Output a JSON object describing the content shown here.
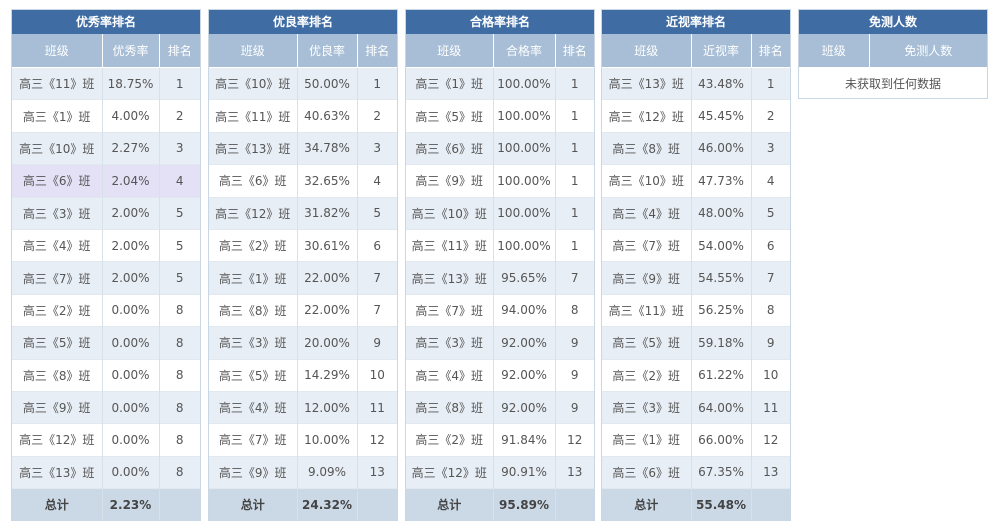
{
  "headers": {
    "class": "班级",
    "rank": "排名"
  },
  "tables": [
    {
      "title": "优秀率排名",
      "metric": "优秀率",
      "rows": [
        {
          "cls": "高三《11》班",
          "val": "18.75%",
          "rank": "1"
        },
        {
          "cls": "高三《1》班",
          "val": "4.00%",
          "rank": "2"
        },
        {
          "cls": "高三《10》班",
          "val": "2.27%",
          "rank": "3"
        },
        {
          "cls": "高三《6》班",
          "val": "2.04%",
          "rank": "4"
        },
        {
          "cls": "高三《3》班",
          "val": "2.00%",
          "rank": "5"
        },
        {
          "cls": "高三《4》班",
          "val": "2.00%",
          "rank": "5"
        },
        {
          "cls": "高三《7》班",
          "val": "2.00%",
          "rank": "5"
        },
        {
          "cls": "高三《2》班",
          "val": "0.00%",
          "rank": "8"
        },
        {
          "cls": "高三《5》班",
          "val": "0.00%",
          "rank": "8"
        },
        {
          "cls": "高三《8》班",
          "val": "0.00%",
          "rank": "8"
        },
        {
          "cls": "高三《9》班",
          "val": "0.00%",
          "rank": "8"
        },
        {
          "cls": "高三《12》班",
          "val": "0.00%",
          "rank": "8"
        },
        {
          "cls": "高三《13》班",
          "val": "0.00%",
          "rank": "8"
        }
      ],
      "total_label": "总计",
      "total_value": "2.23%"
    },
    {
      "title": "优良率排名",
      "metric": "优良率",
      "rows": [
        {
          "cls": "高三《10》班",
          "val": "50.00%",
          "rank": "1"
        },
        {
          "cls": "高三《11》班",
          "val": "40.63%",
          "rank": "2"
        },
        {
          "cls": "高三《13》班",
          "val": "34.78%",
          "rank": "3"
        },
        {
          "cls": "高三《6》班",
          "val": "32.65%",
          "rank": "4"
        },
        {
          "cls": "高三《12》班",
          "val": "31.82%",
          "rank": "5"
        },
        {
          "cls": "高三《2》班",
          "val": "30.61%",
          "rank": "6"
        },
        {
          "cls": "高三《1》班",
          "val": "22.00%",
          "rank": "7"
        },
        {
          "cls": "高三《8》班",
          "val": "22.00%",
          "rank": "7"
        },
        {
          "cls": "高三《3》班",
          "val": "20.00%",
          "rank": "9"
        },
        {
          "cls": "高三《5》班",
          "val": "14.29%",
          "rank": "10"
        },
        {
          "cls": "高三《4》班",
          "val": "12.00%",
          "rank": "11"
        },
        {
          "cls": "高三《7》班",
          "val": "10.00%",
          "rank": "12"
        },
        {
          "cls": "高三《9》班",
          "val": "9.09%",
          "rank": "13"
        }
      ],
      "total_label": "总计",
      "total_value": "24.32%"
    },
    {
      "title": "合格率排名",
      "metric": "合格率",
      "rows": [
        {
          "cls": "高三《1》班",
          "val": "100.00%",
          "rank": "1"
        },
        {
          "cls": "高三《5》班",
          "val": "100.00%",
          "rank": "1"
        },
        {
          "cls": "高三《6》班",
          "val": "100.00%",
          "rank": "1"
        },
        {
          "cls": "高三《9》班",
          "val": "100.00%",
          "rank": "1"
        },
        {
          "cls": "高三《10》班",
          "val": "100.00%",
          "rank": "1"
        },
        {
          "cls": "高三《11》班",
          "val": "100.00%",
          "rank": "1"
        },
        {
          "cls": "高三《13》班",
          "val": "95.65%",
          "rank": "7"
        },
        {
          "cls": "高三《7》班",
          "val": "94.00%",
          "rank": "8"
        },
        {
          "cls": "高三《3》班",
          "val": "92.00%",
          "rank": "9"
        },
        {
          "cls": "高三《4》班",
          "val": "92.00%",
          "rank": "9"
        },
        {
          "cls": "高三《8》班",
          "val": "92.00%",
          "rank": "9"
        },
        {
          "cls": "高三《2》班",
          "val": "91.84%",
          "rank": "12"
        },
        {
          "cls": "高三《12》班",
          "val": "90.91%",
          "rank": "13"
        }
      ],
      "total_label": "总计",
      "total_value": "95.89%"
    },
    {
      "title": "近视率排名",
      "metric": "近视率",
      "rows": [
        {
          "cls": "高三《13》班",
          "val": "43.48%",
          "rank": "1"
        },
        {
          "cls": "高三《12》班",
          "val": "45.45%",
          "rank": "2"
        },
        {
          "cls": "高三《8》班",
          "val": "46.00%",
          "rank": "3"
        },
        {
          "cls": "高三《10》班",
          "val": "47.73%",
          "rank": "4"
        },
        {
          "cls": "高三《4》班",
          "val": "48.00%",
          "rank": "5"
        },
        {
          "cls": "高三《7》班",
          "val": "54.00%",
          "rank": "6"
        },
        {
          "cls": "高三《9》班",
          "val": "54.55%",
          "rank": "7"
        },
        {
          "cls": "高三《11》班",
          "val": "56.25%",
          "rank": "8"
        },
        {
          "cls": "高三《5》班",
          "val": "59.18%",
          "rank": "9"
        },
        {
          "cls": "高三《2》班",
          "val": "61.22%",
          "rank": "10"
        },
        {
          "cls": "高三《3》班",
          "val": "64.00%",
          "rank": "11"
        },
        {
          "cls": "高三《1》班",
          "val": "66.00%",
          "rank": "12"
        },
        {
          "cls": "高三《6》班",
          "val": "67.35%",
          "rank": "13"
        }
      ],
      "total_label": "总计",
      "total_value": "55.48%"
    }
  ],
  "exempt": {
    "title": "免测人数",
    "col_class": "班级",
    "col_count": "免测人数",
    "empty_text": "未获取到任何数据"
  },
  "highlighted_row": {
    "table": 0,
    "row": 3
  },
  "colors": {
    "title_bg": "#3f6da3",
    "header_bg": "#a7bed6",
    "row_alt_bg": "#e8eef5",
    "highlight_bg": "#e4e1f7",
    "total_bg": "#cbd9e7"
  }
}
